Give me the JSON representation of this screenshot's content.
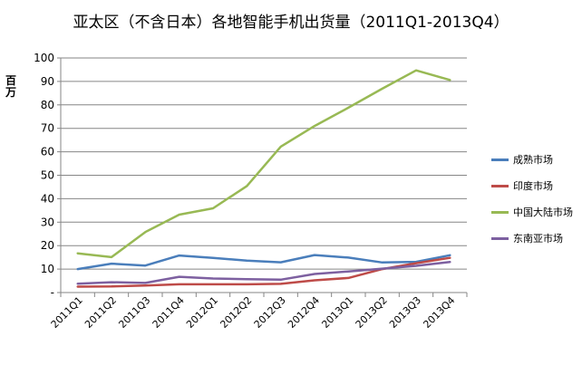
{
  "chart_data": {
    "type": "line",
    "title": "亚太区（不含日本）各地智能手机出货量（2011Q1-2013Q4）",
    "ylabel": "百万",
    "xlabel": "",
    "ylim": [
      0,
      100
    ],
    "y_ticks": [
      "-",
      "10",
      "20",
      "30",
      "40",
      "50",
      "60",
      "70",
      "80",
      "90",
      "100"
    ],
    "grid": true,
    "legend_position": "right",
    "categories": [
      "2011Q1",
      "2011Q2",
      "2011Q3",
      "2011Q4",
      "2012Q1",
      "2012Q2",
      "2012Q3",
      "2012Q4",
      "2013Q1",
      "2013Q2",
      "2013Q3",
      "2013Q4"
    ],
    "series": [
      {
        "name": "成熟市场",
        "color": "#4a7ebb",
        "values": [
          10,
          12.3,
          11.5,
          15.8,
          14.8,
          13.6,
          12.9,
          16,
          14.9,
          12.8,
          13.1,
          15.9
        ]
      },
      {
        "name": "印度市场",
        "color": "#be4b48",
        "values": [
          2.5,
          2.6,
          3,
          3.5,
          3.5,
          3.5,
          3.7,
          5.2,
          6.2,
          10,
          12.5,
          14.8
        ]
      },
      {
        "name": "中国大陆市场",
        "color": "#98b954",
        "values": [
          16.7,
          15.1,
          25.8,
          33.2,
          35.9,
          45.4,
          62.2,
          71,
          78.8,
          86.9,
          94.7,
          90.6
        ]
      },
      {
        "name": "东南亚市场",
        "color": "#7d60a0",
        "values": [
          3.8,
          4.4,
          4.1,
          6.7,
          6,
          5.7,
          5.5,
          7.9,
          9,
          10.2,
          11.4,
          13
        ]
      }
    ]
  }
}
